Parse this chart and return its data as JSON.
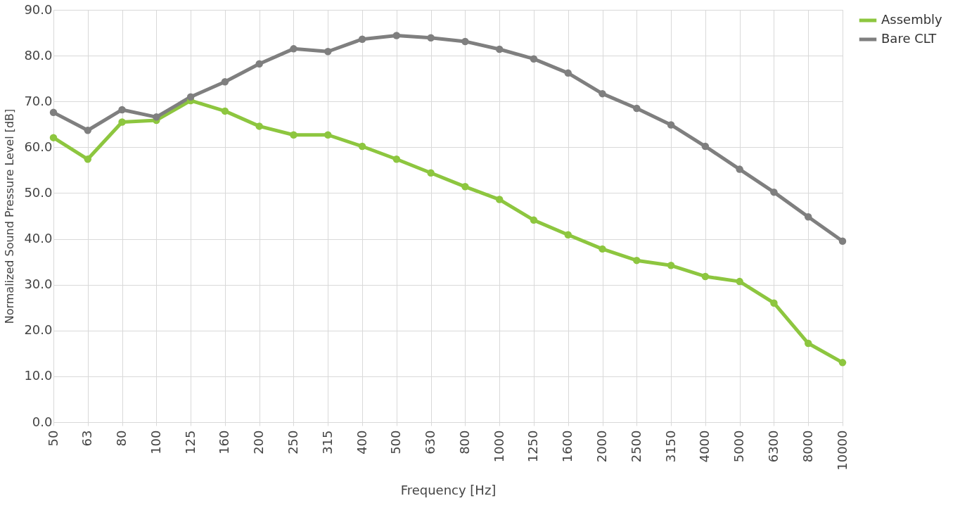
{
  "chart_data": {
    "type": "line",
    "xlabel": "Frequency [Hz]",
    "ylabel": "Normalized Sound Pressure Level [dB]",
    "categories": [
      "50",
      "63",
      "80",
      "100",
      "125",
      "160",
      "200",
      "250",
      "315",
      "400",
      "500",
      "630",
      "800",
      "1000",
      "1250",
      "1600",
      "2000",
      "2500",
      "3150",
      "4000",
      "5000",
      "6300",
      "8000",
      "10000"
    ],
    "series": [
      {
        "name": "Assembly",
        "color": "#8dc63f",
        "values": [
          62.1,
          57.4,
          65.5,
          65.9,
          70.2,
          67.9,
          64.6,
          62.7,
          62.7,
          60.2,
          57.4,
          54.4,
          51.4,
          48.6,
          44.1,
          40.9,
          37.8,
          35.3,
          34.2,
          31.8,
          30.7,
          26.0,
          17.2,
          13.0
        ]
      },
      {
        "name": "Bare CLT",
        "color": "#7f7f7f",
        "values": [
          67.6,
          63.7,
          68.2,
          66.6,
          71.0,
          74.3,
          78.2,
          81.5,
          80.9,
          83.6,
          84.4,
          83.9,
          83.1,
          81.4,
          79.3,
          76.2,
          71.7,
          68.5,
          64.9,
          60.2,
          55.2,
          50.2,
          44.8,
          39.5
        ]
      }
    ],
    "ylim": [
      0,
      90
    ],
    "yticks": [
      {
        "value": 0,
        "label": "0.0"
      },
      {
        "value": 10,
        "label": "10.0"
      },
      {
        "value": 20,
        "label": "20.0"
      },
      {
        "value": 30,
        "label": "30.0"
      },
      {
        "value": 40,
        "label": "40.0"
      },
      {
        "value": 50,
        "label": "50.0"
      },
      {
        "value": 60,
        "label": "60.0"
      },
      {
        "value": 70,
        "label": "70.0"
      },
      {
        "value": 80,
        "label": "80.0"
      },
      {
        "value": 90,
        "label": "90.0"
      }
    ],
    "grid": true,
    "legend": "right",
    "marker": "circle",
    "line_style": "solid"
  }
}
